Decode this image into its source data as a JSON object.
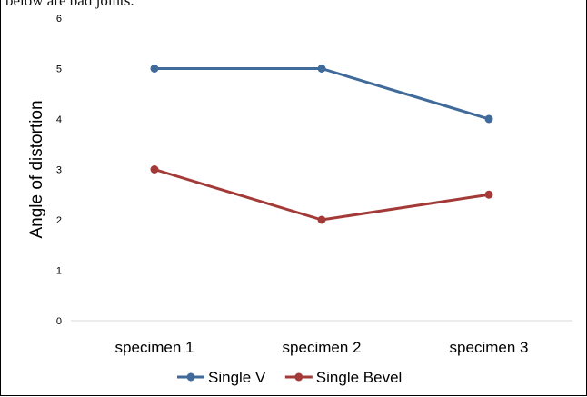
{
  "clipped_caption": "below are bad joints.",
  "chart_data": {
    "type": "line",
    "title": "",
    "xlabel": "",
    "ylabel": "Angle of distortion",
    "categories": [
      "specimen 1",
      "specimen 2",
      "specimen 3"
    ],
    "ylim": [
      0,
      6
    ],
    "yticks": [
      "0",
      "1",
      "2",
      "3",
      "4",
      "5",
      "6"
    ],
    "grid": false,
    "legend_position": "bottom",
    "series": [
      {
        "name": "Single V",
        "color": "#3f6a99",
        "values": [
          5,
          5,
          4
        ]
      },
      {
        "name": "Single Bevel",
        "color": "#a33a38",
        "values": [
          3,
          2,
          2.5
        ]
      }
    ]
  }
}
